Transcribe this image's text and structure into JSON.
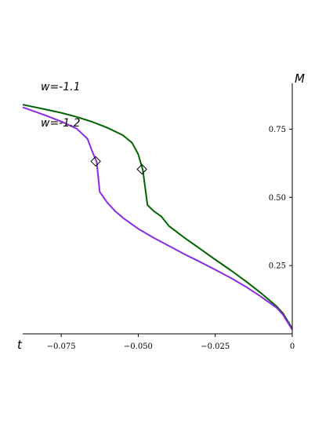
{
  "chart_data": {
    "type": "line",
    "xlabel": "t",
    "ylabel": "M",
    "xlim": [
      -0.0875,
      0
    ],
    "ylim": [
      0,
      0.875
    ],
    "x_ticks": [
      {
        "value": -0.075,
        "label": "−0.075"
      },
      {
        "value": -0.05,
        "label": "−0.050"
      },
      {
        "value": -0.025,
        "label": "−0.025"
      },
      {
        "value": 0,
        "label": "0"
      }
    ],
    "y_ticks": [
      {
        "value": 0.25,
        "label": "0.25"
      },
      {
        "value": 0.5,
        "label": "0.50"
      },
      {
        "value": 0.75,
        "label": "0.75"
      }
    ],
    "grid": false,
    "series": [
      {
        "name": "w=-1.1",
        "color": "#006400",
        "points": [
          [
            -0.0875,
            0.84
          ],
          [
            -0.08,
            0.822
          ],
          [
            -0.075,
            0.81
          ],
          [
            -0.07,
            0.795
          ],
          [
            -0.065,
            0.777
          ],
          [
            -0.06,
            0.755
          ],
          [
            -0.055,
            0.728
          ],
          [
            -0.052,
            0.7
          ],
          [
            -0.05,
            0.658
          ],
          [
            -0.0485,
            0.6
          ],
          [
            -0.047,
            0.472
          ],
          [
            -0.045,
            0.45
          ],
          [
            -0.0425,
            0.43
          ],
          [
            -0.04,
            0.395
          ],
          [
            -0.035,
            0.352
          ],
          [
            -0.03,
            0.312
          ],
          [
            -0.025,
            0.272
          ],
          [
            -0.02,
            0.233
          ],
          [
            -0.015,
            0.192
          ],
          [
            -0.01,
            0.148
          ],
          [
            -0.005,
            0.1
          ],
          [
            -0.003,
            0.075
          ],
          [
            0,
            0.02
          ]
        ],
        "marker": [
          -0.0488,
          0.603
        ]
      },
      {
        "name": "w=-1.2",
        "color": "#8a2be2",
        "points": [
          [
            -0.0875,
            0.83
          ],
          [
            -0.08,
            0.8
          ],
          [
            -0.075,
            0.778
          ],
          [
            -0.07,
            0.752
          ],
          [
            -0.0665,
            0.715
          ],
          [
            -0.065,
            0.67
          ],
          [
            -0.0635,
            0.63
          ],
          [
            -0.0625,
            0.52
          ],
          [
            -0.06,
            0.48
          ],
          [
            -0.0575,
            0.45
          ],
          [
            -0.055,
            0.425
          ],
          [
            -0.05,
            0.385
          ],
          [
            -0.045,
            0.352
          ],
          [
            -0.04,
            0.322
          ],
          [
            -0.035,
            0.292
          ],
          [
            -0.03,
            0.264
          ],
          [
            -0.025,
            0.235
          ],
          [
            -0.02,
            0.205
          ],
          [
            -0.015,
            0.172
          ],
          [
            -0.01,
            0.135
          ],
          [
            -0.005,
            0.095
          ],
          [
            -0.003,
            0.07
          ],
          [
            0,
            0.015
          ]
        ],
        "marker": [
          -0.0638,
          0.632
        ]
      }
    ]
  }
}
